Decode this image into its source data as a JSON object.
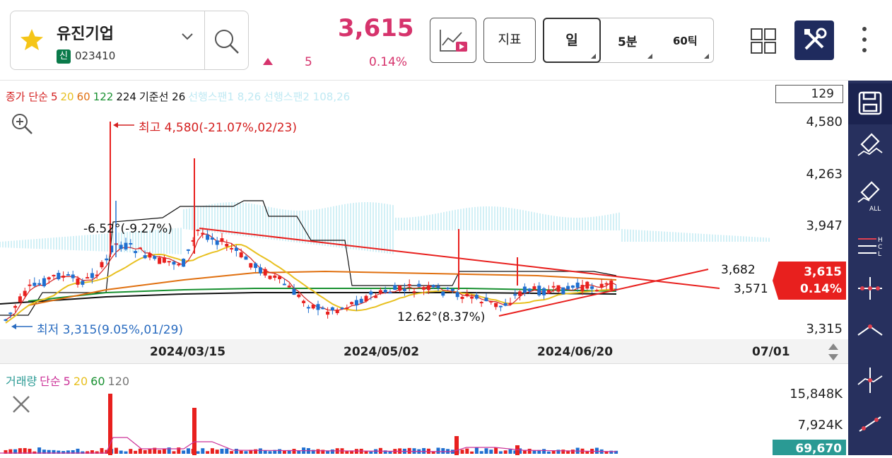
{
  "header": {
    "stock_name": "유진기업",
    "market_badge": "신",
    "stock_code": "023410",
    "price": "3,615",
    "change": "5",
    "change_pct": "0.14%",
    "change_direction": "up",
    "indicator_label": "지표",
    "periods": [
      "일",
      "5분",
      "60틱"
    ],
    "selected_period": "일"
  },
  "legend": {
    "items": [
      {
        "text": "종가 단순",
        "color": "#d42020"
      },
      {
        "text": "5",
        "color": "#d42020"
      },
      {
        "text": "20",
        "color": "#e8c020"
      },
      {
        "text": "60",
        "color": "#e07010"
      },
      {
        "text": "122",
        "color": "#189030"
      },
      {
        "text": "224",
        "color": "#111111"
      },
      {
        "text": "기준선 26",
        "color": "#111111"
      },
      {
        "text": "선행스팬1 8,26",
        "color": "#bfe9f3"
      },
      {
        "text": "선행스팬2 108,26",
        "color": "#bfe9f3"
      }
    ]
  },
  "volume_legend": {
    "items": [
      {
        "text": "거래량",
        "color": "#2a9a94"
      },
      {
        "text": "단순",
        "color": "#cc3399"
      },
      {
        "text": "5",
        "color": "#cc3399"
      },
      {
        "text": "20",
        "color": "#e8c020"
      },
      {
        "text": "60",
        "color": "#189030"
      },
      {
        "text": "120",
        "color": "#777777"
      }
    ]
  },
  "chart": {
    "visible_count": "129",
    "y_labels": [
      "4,580",
      "4,263",
      "3,947",
      "3,315"
    ],
    "x_labels": [
      "2024/03/15",
      "2024/05/02",
      "2024/06/20",
      "07/01"
    ],
    "high_annotation": "최고 4,580(-21.07%,02/23)",
    "low_annotation": "최저 3,315(9.05%,01/29)",
    "angle_down_annotation": "-6.52°(-9.27%)",
    "angle_up_annotation": "12.62°(8.37%)",
    "trend_label_upper": "3,682",
    "trend_label_lower": "3,571",
    "current_price_tag": "3,615",
    "current_pct_tag": "0.14%"
  },
  "volume": {
    "y_labels": [
      "15,848K",
      "7,924K"
    ],
    "current_volume": "69,670"
  },
  "colors": {
    "up": "#e8201e",
    "down": "#1f6fd0",
    "accent": "#d6336c",
    "toolbar": "#27305e",
    "ichimoku_cloud": "#bfe9f3"
  },
  "icons": {
    "favorite": "star-icon",
    "dropdown": "chevron-down-icon",
    "search": "search-icon",
    "chart_type": "chart-play-icon",
    "layout": "grid-icon",
    "tools": "tools-icon",
    "more": "more-vertical-icon",
    "zoom": "zoom-in-icon",
    "close": "close-icon",
    "save": "save-icon",
    "erase": "eraser-icon",
    "erase_all": "eraser-all-icon",
    "hcl": "hcl-line-icon",
    "cross": "crosshair-icon",
    "peak": "peak-line-icon",
    "vertical": "vertical-line-icon",
    "trend": "trend-line-icon"
  }
}
